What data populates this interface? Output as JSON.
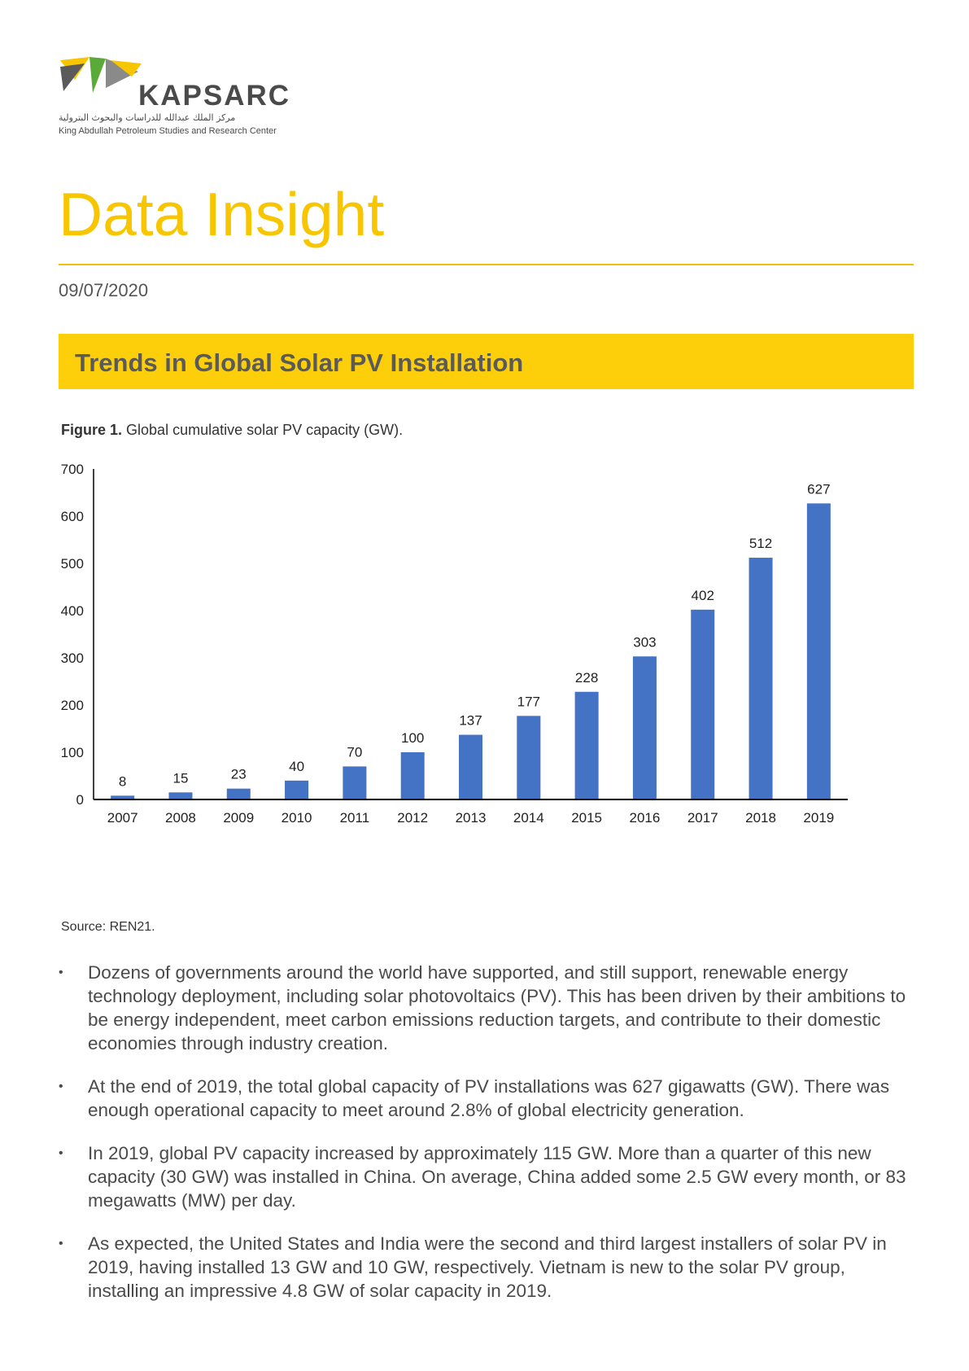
{
  "header": {
    "brand": "KAPSARC",
    "arabic_name": "مركز الملك عبدالله للدراسات والبحوث البترولية",
    "english_name": "King Abdullah Petroleum Studies and Research Center",
    "logo_colors": [
      "#f7c600",
      "#5aaa3a",
      "#5a5a5a",
      "#8a8a8a"
    ]
  },
  "doc": {
    "title": "Data Insight",
    "date": "09/07/2020",
    "section_heading": "Trends in Global Solar PV Installation"
  },
  "figure": {
    "label": "Figure 1.",
    "caption": "Global cumulative solar PV capacity (GW).",
    "source": "Source: REN21."
  },
  "chart_data": {
    "type": "bar",
    "title": "Global cumulative solar PV capacity (GW).",
    "categories": [
      "2007",
      "2008",
      "2009",
      "2010",
      "2011",
      "2012",
      "2013",
      "2014",
      "2015",
      "2016",
      "2017",
      "2018",
      "2019"
    ],
    "values": [
      8,
      15,
      23,
      40,
      70,
      100,
      137,
      177,
      228,
      303,
      402,
      512,
      627
    ],
    "data_labels": [
      "8",
      "15",
      "23",
      "40",
      "70",
      "100",
      "137",
      "177",
      "228",
      "303",
      "402",
      "512",
      "627"
    ],
    "xlabel": "",
    "ylabel": "",
    "ylim": [
      0,
      700
    ],
    "yticks": [
      0,
      100,
      200,
      300,
      400,
      500,
      600,
      700
    ],
    "bar_color": "#4472c4",
    "grid": false,
    "legend": "none"
  },
  "bullets": [
    "Dozens of governments around the world have supported, and still support, renewable energy technology deployment, including solar photovoltaics (PV). This has been driven by their ambitions to be energy independent, meet carbon emissions reduction targets, and contribute to their domestic economies through industry creation.",
    "At the end of 2019, the total global capacity of PV installations was 627 gigawatts (GW). There was enough operational capacity to meet around 2.8% of global electricity generation.",
    "In 2019, global PV capacity increased by approximately 115 GW. More than a quarter of this new capacity (30 GW) was installed in China. On average, China added some 2.5 GW every month, or 83 megawatts (MW) per day.",
    "As expected, the United States and India were the second and third largest installers of solar PV in 2019, having installed 13 GW and 10 GW, respectively. Vietnam is new to the solar PV group, installing an impressive 4.8 GW of solar capacity in 2019."
  ],
  "bullet_marker": "•"
}
